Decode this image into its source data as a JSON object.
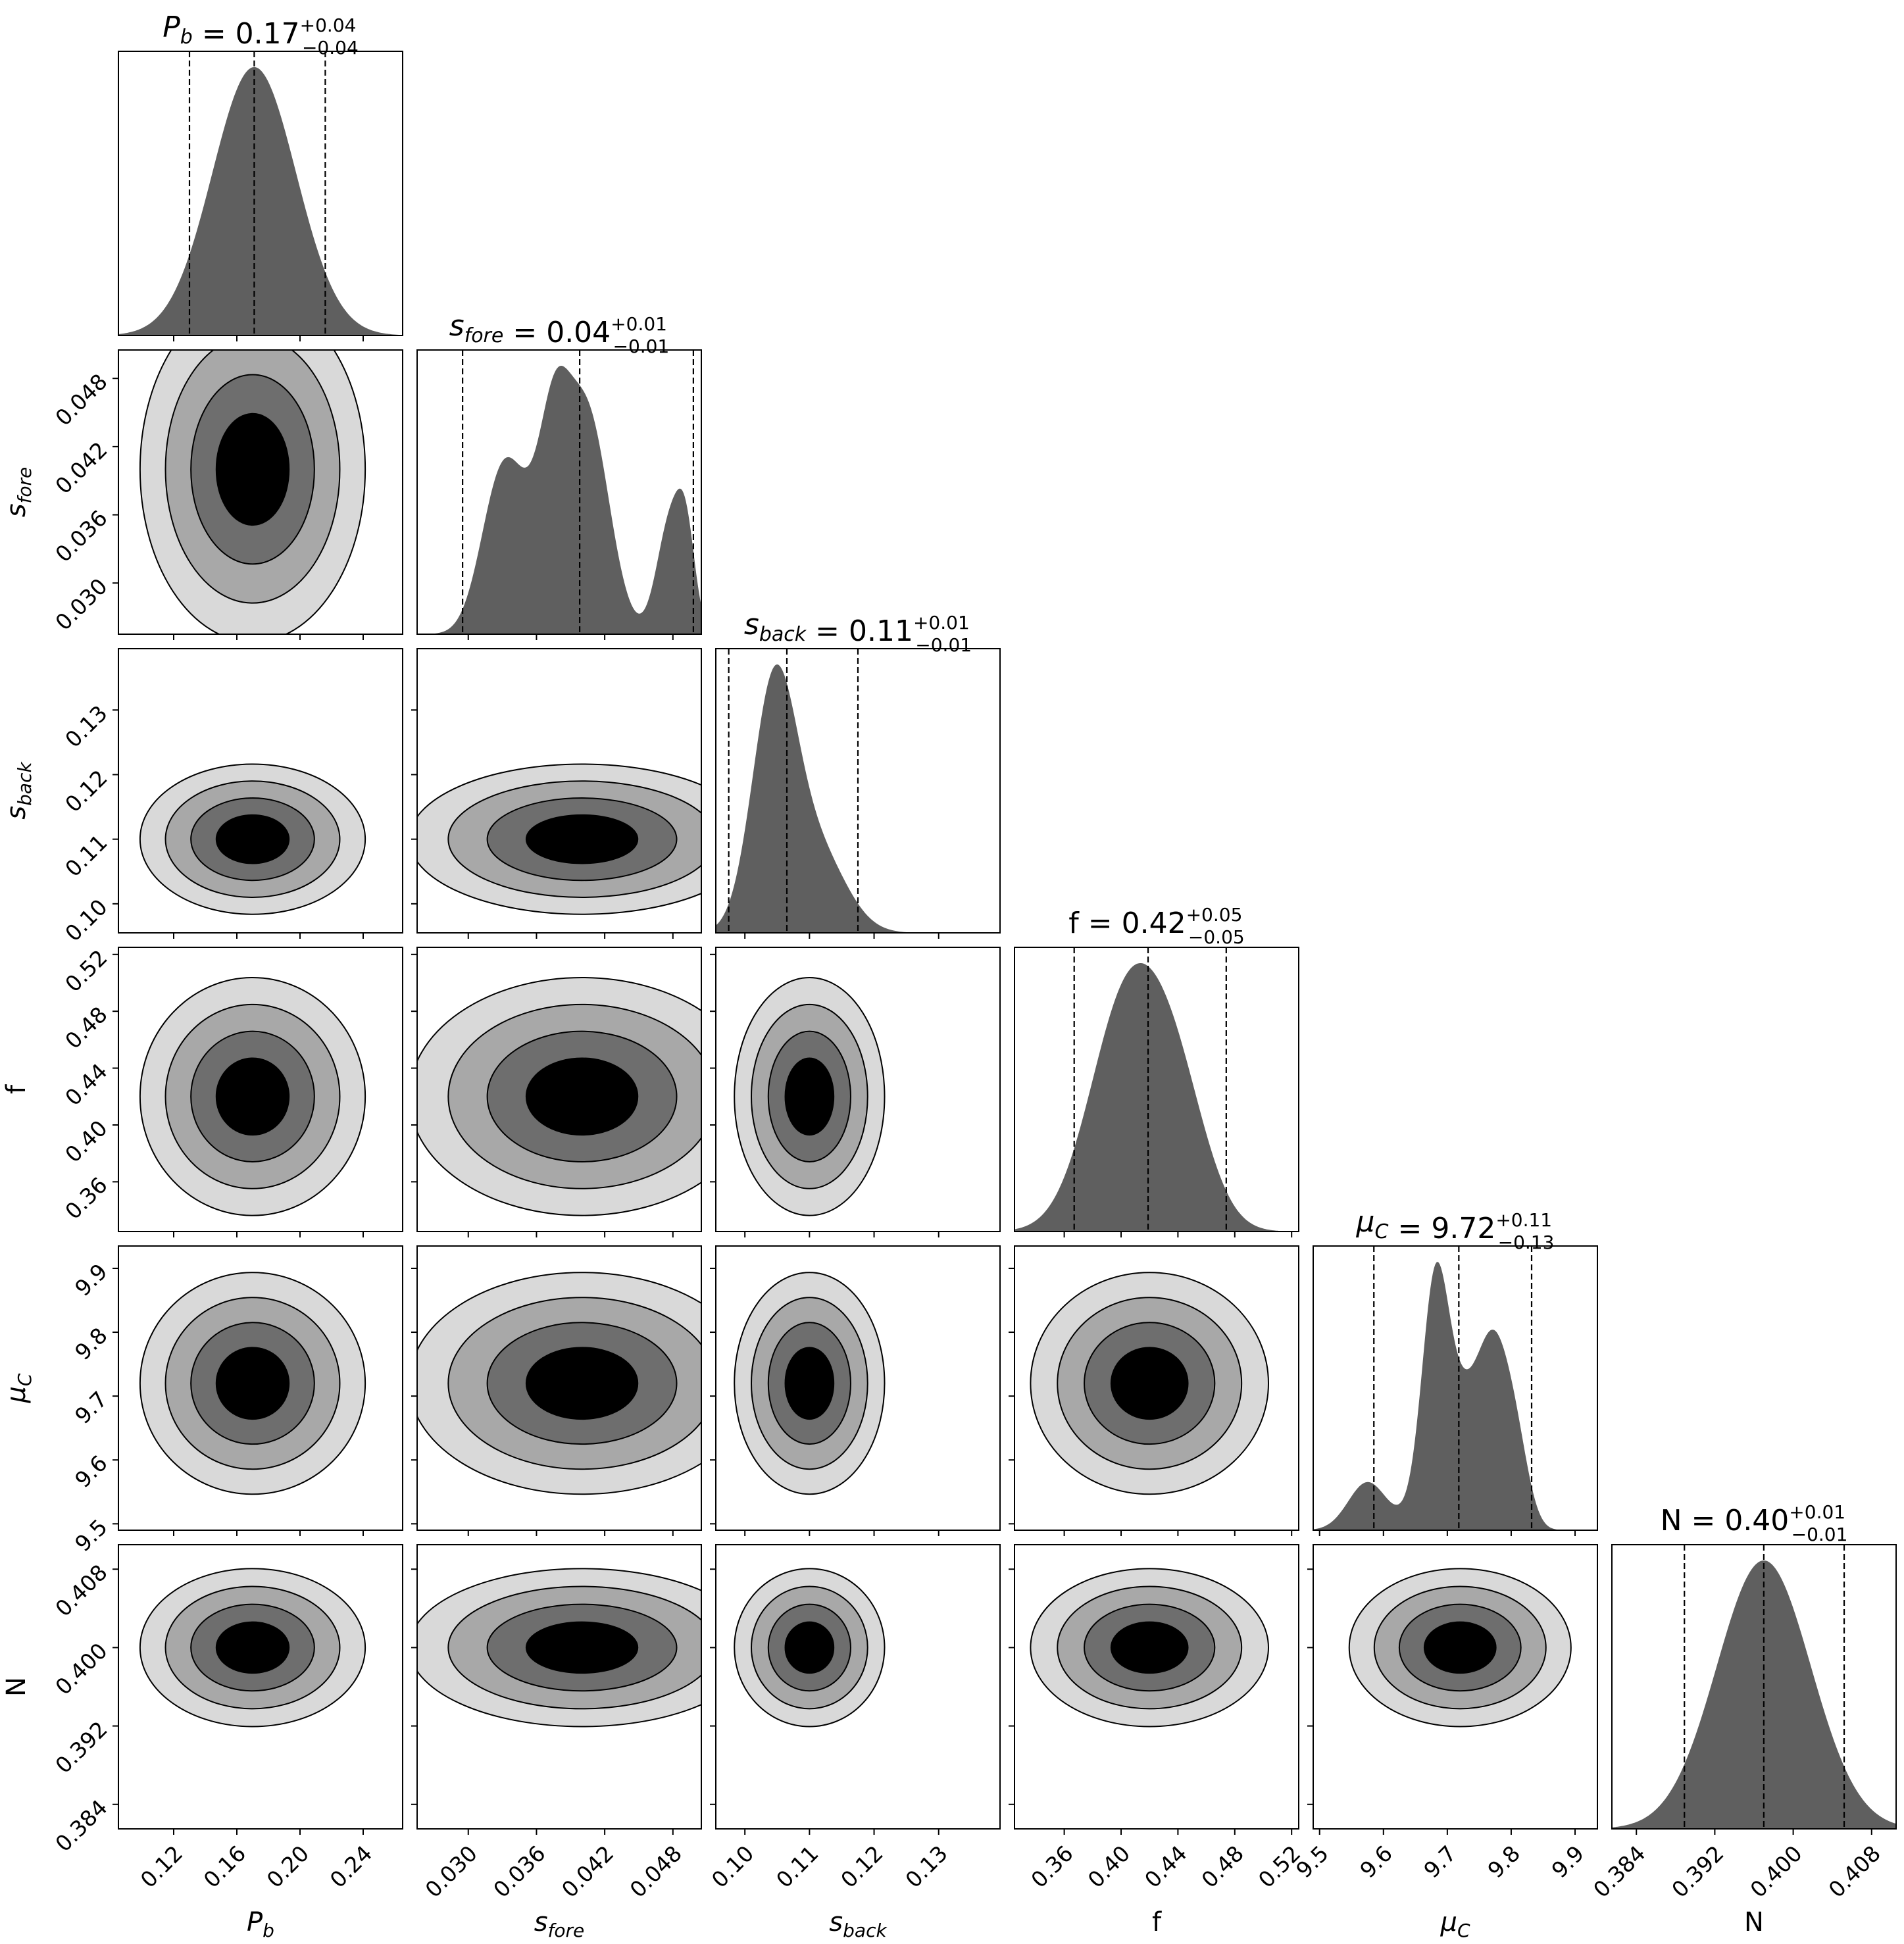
{
  "chart_data": {
    "type": "corner",
    "parameters": [
      {
        "key": "Pb",
        "label": "P",
        "label_sub": "b",
        "italic": true,
        "median": 0.17,
        "plus": "+0.04",
        "minus": "−0.04",
        "value_text": "0.17",
        "quantiles": [
          0.13,
          0.171,
          0.216
        ],
        "range": [
          0.085,
          0.265
        ],
        "ticks": [
          0.12,
          0.16,
          0.2,
          0.24
        ],
        "tick_labels": [
          "0.12",
          "0.16",
          "0.20",
          "0.24"
        ]
      },
      {
        "key": "sfore",
        "label": "s",
        "label_sub": "fore",
        "italic": true,
        "median": 0.04,
        "plus": "+0.01",
        "minus": "−0.01",
        "value_text": "0.04",
        "quantiles": [
          0.0295,
          0.0398,
          0.0498
        ],
        "range": [
          0.0255,
          0.0505
        ],
        "ticks": [
          0.03,
          0.036,
          0.042,
          0.048
        ],
        "tick_labels": [
          "0.030",
          "0.036",
          "0.042",
          "0.048"
        ]
      },
      {
        "key": "sback",
        "label": "s",
        "label_sub": "back",
        "italic": true,
        "median": 0.11,
        "plus": "+0.01",
        "minus": "−0.01",
        "value_text": "0.11",
        "quantiles": [
          0.0975,
          0.1065,
          0.1175
        ],
        "range": [
          0.0955,
          0.1395
        ],
        "ticks": [
          0.1,
          0.11,
          0.12,
          0.13
        ],
        "tick_labels": [
          "0.10",
          "0.11",
          "0.12",
          "0.13"
        ]
      },
      {
        "key": "f",
        "label": "f",
        "label_sub": "",
        "italic": false,
        "median": 0.42,
        "plus": "+0.05",
        "minus": "−0.05",
        "value_text": "0.42",
        "quantiles": [
          0.367,
          0.419,
          0.474
        ],
        "range": [
          0.325,
          0.525
        ],
        "ticks": [
          0.36,
          0.4,
          0.44,
          0.48,
          0.52
        ],
        "tick_labels": [
          "0.36",
          "0.40",
          "0.44",
          "0.48",
          "0.52"
        ]
      },
      {
        "key": "muC",
        "label": "μ",
        "label_sub": "C",
        "italic": true,
        "median": 9.72,
        "plus": "+0.11",
        "minus": "−0.13",
        "value_text": "9.72",
        "quantiles": [
          9.585,
          9.718,
          9.832
        ],
        "range": [
          9.49,
          9.935
        ],
        "ticks": [
          9.5,
          9.6,
          9.7,
          9.8,
          9.9
        ],
        "tick_labels": [
          "9.5",
          "9.6",
          "9.7",
          "9.8",
          "9.9"
        ]
      },
      {
        "key": "N",
        "label": "N",
        "label_sub": "",
        "italic": false,
        "median": 0.4,
        "plus": "+0.01",
        "minus": "−0.01",
        "value_text": "0.40",
        "quantiles": [
          0.3889,
          0.397,
          0.4052
        ],
        "range": [
          0.3815,
          0.4105
        ],
        "ticks": [
          0.384,
          0.392,
          0.4,
          0.408
        ],
        "tick_labels": [
          "0.384",
          "0.392",
          "0.400",
          "0.408"
        ]
      }
    ],
    "marginals": [
      {
        "components": [
          {
            "mu": 0.171,
            "sigma": 0.0265,
            "w": 1
          }
        ]
      },
      {
        "components": [
          {
            "mu": 0.0325,
            "sigma": 0.0017,
            "w": 0.55
          },
          {
            "mu": 0.0345,
            "sigma": 0.0017,
            "w": 0.45
          },
          {
            "mu": 0.0375,
            "sigma": 0.0014,
            "w": 0.85
          },
          {
            "mu": 0.0405,
            "sigma": 0.0019,
            "w": 1.05
          },
          {
            "mu": 0.0478,
            "sigma": 0.0012,
            "w": 0.55
          },
          {
            "mu": 0.0492,
            "sigma": 0.0008,
            "w": 0.35
          }
        ]
      },
      {
        "components": [
          {
            "mu": 0.1045,
            "sigma": 0.0034,
            "w": 1.0
          },
          {
            "mu": 0.111,
            "sigma": 0.0045,
            "w": 0.35
          }
        ]
      },
      {
        "components": [
          {
            "mu": 0.404,
            "sigma": 0.026,
            "w": 1.0
          },
          {
            "mu": 0.44,
            "sigma": 0.022,
            "w": 0.5
          }
        ]
      },
      {
        "components": [
          {
            "mu": 9.575,
            "sigma": 0.03,
            "w": 0.25
          },
          {
            "mu": 9.68,
            "sigma": 0.02,
            "w": 0.9
          },
          {
            "mu": 9.715,
            "sigma": 0.04,
            "w": 0.7
          },
          {
            "mu": 9.775,
            "sigma": 0.025,
            "w": 0.75
          },
          {
            "mu": 9.81,
            "sigma": 0.02,
            "w": 0.3
          }
        ]
      },
      {
        "components": [
          {
            "mu": 0.397,
            "sigma": 0.0048,
            "w": 1
          }
        ]
      }
    ],
    "joint_fill_colors": [
      "#d9d9d9",
      "#a8a8a8",
      "#6e6e6e",
      "#000000"
    ],
    "density_color": "#5f5f5f",
    "grid": false,
    "legend": "none"
  }
}
